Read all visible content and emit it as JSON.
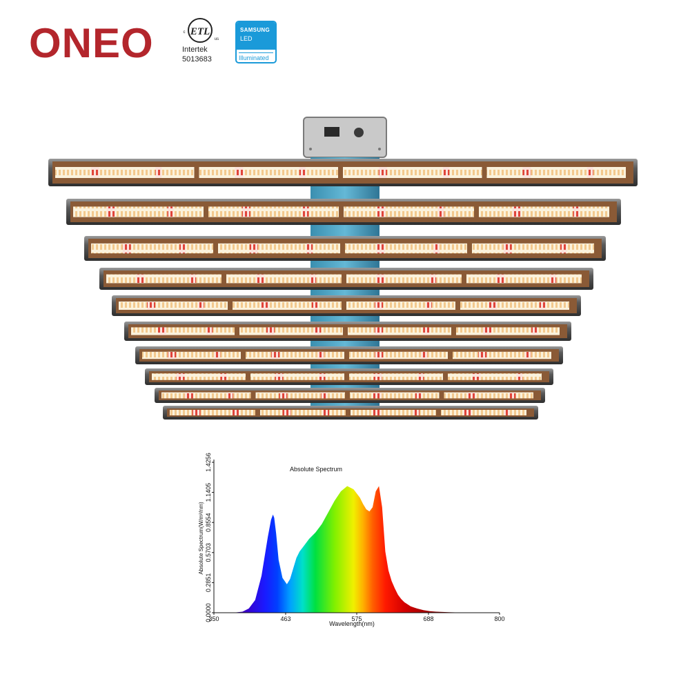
{
  "brand": {
    "name": "ONEO",
    "color": "#b3262c"
  },
  "certifications": {
    "etl": {
      "mark_c": "c",
      "mark_main": "ETL",
      "mark_us": "us",
      "issuer": "Intertek",
      "number": "5013683"
    },
    "samsung": {
      "brand": "SAMSUNG",
      "product": "LED",
      "tagline": "Illuminated",
      "color": "#1a9ad9"
    }
  },
  "product_image": {
    "icon": "led-grow-light-fixture",
    "bar_count": 10
  },
  "chart_data": {
    "type": "area",
    "title": "Absolute Spectrum",
    "xlabel": "Wavelength(nm)",
    "ylabel": "Absolute Spectrum(W/m²/nm)",
    "xlim": [
      350,
      800
    ],
    "ylim": [
      0,
      1.4256
    ],
    "x_ticks": [
      "350",
      "463",
      "575",
      "688",
      "800"
    ],
    "y_ticks": [
      "0.0000",
      "0.2851",
      "0.5703",
      "0.8554",
      "1.1405",
      "1.4256"
    ],
    "grid": false,
    "series": [
      {
        "x": [
          350,
          380,
          395,
          405,
          415,
          425,
          435,
          440,
          443,
          445,
          448,
          452,
          458,
          465,
          470,
          475,
          480,
          485,
          490,
          495,
          500,
          510,
          520,
          530,
          540,
          550,
          560,
          570,
          580,
          585,
          590,
          595,
          600,
          605,
          610,
          615,
          620,
          625,
          630,
          635,
          640,
          645,
          650,
          655,
          660,
          665,
          670,
          680,
          690,
          700,
          720,
          740,
          760,
          780,
          800
        ],
        "values": [
          0,
          0,
          0.01,
          0.04,
          0.12,
          0.35,
          0.72,
          0.88,
          0.93,
          0.9,
          0.75,
          0.5,
          0.33,
          0.27,
          0.32,
          0.42,
          0.52,
          0.58,
          0.62,
          0.66,
          0.7,
          0.76,
          0.84,
          0.95,
          1.06,
          1.15,
          1.2,
          1.17,
          1.09,
          1.03,
          0.98,
          0.96,
          1.0,
          1.15,
          1.2,
          1.0,
          0.58,
          0.4,
          0.3,
          0.23,
          0.17,
          0.13,
          0.1,
          0.08,
          0.06,
          0.05,
          0.04,
          0.025,
          0.015,
          0.01,
          0.005,
          0.002,
          0.001,
          0,
          0
        ]
      }
    ]
  }
}
